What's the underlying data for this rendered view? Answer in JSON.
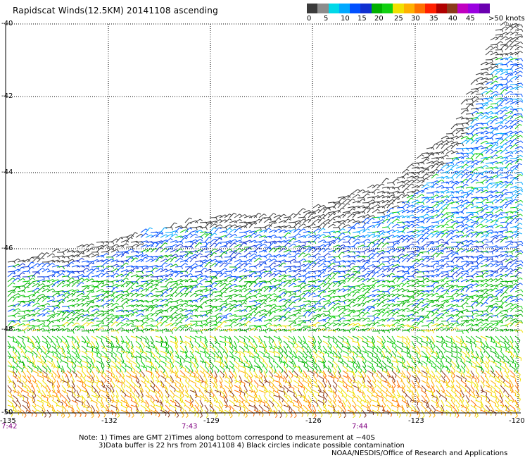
{
  "title": "Rapidscat Winds(12.5KM) 20141108 ascending",
  "colorbar": {
    "colors": [
      "#3a3a3a",
      "#8c8c8c",
      "#00d8e8",
      "#00a8ff",
      "#0050ff",
      "#1030d0",
      "#00b000",
      "#10d010",
      "#f0e000",
      "#ffb000",
      "#ff7000",
      "#ff2000",
      "#b00000",
      "#8b3a1a",
      "#c000c0",
      "#9a00e0",
      "#6a00b0"
    ],
    "labels": [
      "0",
      "5",
      "10",
      "15",
      "20",
      "25",
      "30",
      "35",
      "40",
      "45",
      ">50 knots"
    ]
  },
  "axes": {
    "lat_ticks": [
      "-40",
      "-42",
      "-44",
      "-46",
      "-48",
      "-50"
    ],
    "lon_ticks": [
      "-135",
      "-132",
      "-129",
      "-126",
      "-123",
      "-120"
    ],
    "times": [
      "7:42",
      "7:43",
      "7:44"
    ]
  },
  "notes": [
    "Note: 1) Times are GMT 2)Times along bottom correspond to measurement at ~40S",
    "3)Data buffer is 22 hrs from 20141108 4) Black circles indicate possible contamination"
  ],
  "credit": "NOAA/NESDIS/Office of Research and Applications"
}
